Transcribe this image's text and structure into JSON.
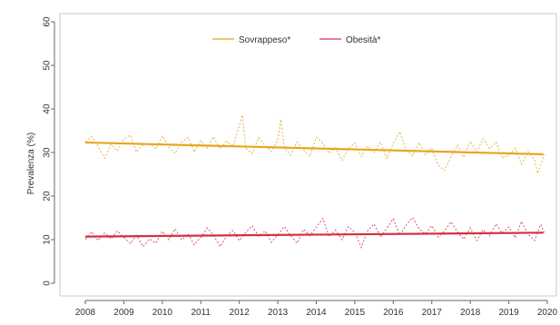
{
  "chart_data": {
    "type": "line",
    "title": "",
    "xlabel": "",
    "ylabel": "Prevalenza (%)",
    "x_ticks": [
      "2008",
      "2009",
      "2010",
      "2011",
      "2012",
      "2013",
      "2014",
      "2015",
      "2016",
      "2017",
      "2018",
      "2019",
      "2020"
    ],
    "y_ticks": [
      "0",
      "10",
      "20",
      "30",
      "40",
      "50",
      "60"
    ],
    "xlim": [
      2008,
      2020
    ],
    "ylim": [
      0,
      60
    ],
    "legend_position": "top-center",
    "series": [
      {
        "name": "Sovrappeso*",
        "color": "#e7b54a",
        "trend_color": "#e9a51f",
        "trend": [
          [
            2008.0,
            32.3
          ],
          [
            2019.9,
            29.6
          ]
        ],
        "values": [
          [
            2008.0,
            32.5
          ],
          [
            2008.17,
            33.7
          ],
          [
            2008.33,
            31.4
          ],
          [
            2008.5,
            28.7
          ],
          [
            2008.67,
            31.9
          ],
          [
            2008.83,
            30.4
          ],
          [
            2009.0,
            33.1
          ],
          [
            2009.17,
            34.0
          ],
          [
            2009.33,
            30.1
          ],
          [
            2009.5,
            31.8
          ],
          [
            2009.67,
            32.0
          ],
          [
            2009.83,
            30.8
          ],
          [
            2010.0,
            33.8
          ],
          [
            2010.17,
            31.2
          ],
          [
            2010.33,
            29.8
          ],
          [
            2010.5,
            32.4
          ],
          [
            2010.67,
            33.5
          ],
          [
            2010.83,
            30.1
          ],
          [
            2011.0,
            32.8
          ],
          [
            2011.17,
            31.0
          ],
          [
            2011.33,
            33.6
          ],
          [
            2011.5,
            30.8
          ],
          [
            2011.67,
            32.6
          ],
          [
            2011.83,
            31.4
          ],
          [
            2012.0,
            36.0
          ],
          [
            2012.08,
            38.6
          ],
          [
            2012.17,
            31.0
          ],
          [
            2012.33,
            29.7
          ],
          [
            2012.5,
            33.4
          ],
          [
            2012.67,
            31.6
          ],
          [
            2012.83,
            30.2
          ],
          [
            2013.0,
            32.8
          ],
          [
            2013.08,
            37.6
          ],
          [
            2013.17,
            31.0
          ],
          [
            2013.33,
            29.4
          ],
          [
            2013.5,
            32.4
          ],
          [
            2013.67,
            30.6
          ],
          [
            2013.83,
            29.1
          ],
          [
            2014.0,
            33.5
          ],
          [
            2014.17,
            32.1
          ],
          [
            2014.33,
            29.8
          ],
          [
            2014.5,
            31.1
          ],
          [
            2014.67,
            28.2
          ],
          [
            2014.83,
            30.9
          ],
          [
            2015.0,
            32.2
          ],
          [
            2015.17,
            29.1
          ],
          [
            2015.33,
            31.5
          ],
          [
            2015.5,
            30.0
          ],
          [
            2015.67,
            32.4
          ],
          [
            2015.83,
            28.6
          ],
          [
            2016.0,
            32.1
          ],
          [
            2016.17,
            34.8
          ],
          [
            2016.33,
            30.6
          ],
          [
            2016.5,
            29.2
          ],
          [
            2016.67,
            32.3
          ],
          [
            2016.83,
            29.5
          ],
          [
            2017.0,
            31.0
          ],
          [
            2017.17,
            27.0
          ],
          [
            2017.33,
            25.9
          ],
          [
            2017.5,
            29.1
          ],
          [
            2017.67,
            31.7
          ],
          [
            2017.83,
            28.9
          ],
          [
            2018.0,
            32.6
          ],
          [
            2018.17,
            30.1
          ],
          [
            2018.33,
            33.2
          ],
          [
            2018.5,
            30.9
          ],
          [
            2018.67,
            32.4
          ],
          [
            2018.83,
            28.7
          ],
          [
            2019.0,
            29.4
          ],
          [
            2019.17,
            31.0
          ],
          [
            2019.33,
            27.3
          ],
          [
            2019.5,
            30.2
          ],
          [
            2019.67,
            28.3
          ],
          [
            2019.75,
            25.2
          ],
          [
            2019.92,
            29.6
          ]
        ]
      },
      {
        "name": "Obesità*",
        "color": "#d95a6f",
        "trend_color": "#d2323f",
        "trend": [
          [
            2008.0,
            10.7
          ],
          [
            2019.9,
            11.6
          ]
        ],
        "values": [
          [
            2008.0,
            10.1
          ],
          [
            2008.17,
            11.8
          ],
          [
            2008.33,
            9.8
          ],
          [
            2008.5,
            11.5
          ],
          [
            2008.67,
            10.2
          ],
          [
            2008.83,
            12.0
          ],
          [
            2009.0,
            10.5
          ],
          [
            2009.17,
            9.1
          ],
          [
            2009.33,
            11.0
          ],
          [
            2009.5,
            8.4
          ],
          [
            2009.67,
            10.2
          ],
          [
            2009.83,
            9.2
          ],
          [
            2010.0,
            11.9
          ],
          [
            2010.17,
            10.0
          ],
          [
            2010.33,
            12.5
          ],
          [
            2010.5,
            9.9
          ],
          [
            2010.67,
            11.3
          ],
          [
            2010.83,
            8.8
          ],
          [
            2011.0,
            10.6
          ],
          [
            2011.17,
            12.7
          ],
          [
            2011.33,
            11.0
          ],
          [
            2011.5,
            8.4
          ],
          [
            2011.67,
            10.8
          ],
          [
            2011.83,
            12.1
          ],
          [
            2012.0,
            9.8
          ],
          [
            2012.17,
            11.7
          ],
          [
            2012.33,
            13.2
          ],
          [
            2012.5,
            10.8
          ],
          [
            2012.67,
            12.0
          ],
          [
            2012.83,
            9.4
          ],
          [
            2013.0,
            11.1
          ],
          [
            2013.17,
            13.0
          ],
          [
            2013.33,
            11.0
          ],
          [
            2013.5,
            9.2
          ],
          [
            2013.67,
            12.4
          ],
          [
            2013.83,
            10.9
          ],
          [
            2014.0,
            12.8
          ],
          [
            2014.17,
            14.9
          ],
          [
            2014.33,
            10.7
          ],
          [
            2014.5,
            12.2
          ],
          [
            2014.67,
            10.0
          ],
          [
            2014.83,
            13.0
          ],
          [
            2015.0,
            11.7
          ],
          [
            2015.17,
            8.2
          ],
          [
            2015.33,
            12.0
          ],
          [
            2015.5,
            13.6
          ],
          [
            2015.67,
            10.6
          ],
          [
            2015.83,
            12.6
          ],
          [
            2016.0,
            14.8
          ],
          [
            2016.17,
            11.0
          ],
          [
            2016.33,
            13.3
          ],
          [
            2016.5,
            15.1
          ],
          [
            2016.67,
            12.5
          ],
          [
            2016.83,
            11.3
          ],
          [
            2017.0,
            13.2
          ],
          [
            2017.17,
            10.6
          ],
          [
            2017.33,
            12.0
          ],
          [
            2017.5,
            14.1
          ],
          [
            2017.67,
            11.8
          ],
          [
            2017.83,
            10.1
          ],
          [
            2018.0,
            12.7
          ],
          [
            2018.17,
            9.8
          ],
          [
            2018.33,
            12.3
          ],
          [
            2018.5,
            10.9
          ],
          [
            2018.67,
            13.6
          ],
          [
            2018.83,
            11.5
          ],
          [
            2019.0,
            12.9
          ],
          [
            2019.17,
            10.4
          ],
          [
            2019.33,
            14.2
          ],
          [
            2019.5,
            11.2
          ],
          [
            2019.67,
            9.8
          ],
          [
            2019.83,
            13.5
          ],
          [
            2019.92,
            11.6
          ]
        ]
      }
    ]
  }
}
